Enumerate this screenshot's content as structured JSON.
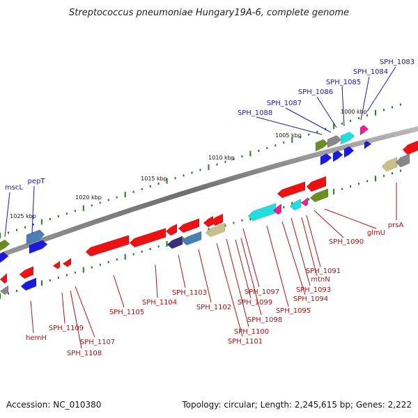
{
  "title": "Streptococcus pneumoniae Hungary19A-6, complete genome",
  "scale_labels": [
    "1000 kbp",
    "1005 kbp",
    "1010 kbp",
    "1015 kbp",
    "1020 kbp",
    "1025 kbp"
  ],
  "top_labels": [
    "SPH_1083",
    "SPH_1084",
    "SPH_1085",
    "SPH_1086",
    "SPH_1087",
    "SPH_1088",
    "pepT",
    "mscL"
  ],
  "bottom_labels": [
    "prsA",
    "glmU",
    "SPH_1090",
    "SPH_1091",
    "mtnN",
    "SPH_1093",
    "SPH_1094",
    "SPH_1095",
    "SPH_1097",
    "SPH_1098",
    "SPH_1099",
    "SPH_1100",
    "SPH_1101",
    "SPH_1102",
    "SPH_1103",
    "SPH_1104",
    "SPH_1105",
    "SPH_1107",
    "SPH_1108",
    "SPH_1109",
    "hemH"
  ],
  "footer": {
    "accession": "Accession: NC_010380",
    "topology": "Topology: circular; Length: 2,245,615 bp; Genes: 2,222"
  },
  "colors": {
    "backbone": "#7a7a7a",
    "tick": "#1e7d1e",
    "top_label": "#1a1aa8",
    "bottom_label": "#b01010",
    "gene_red": "#ee1111",
    "gene_blue": "#1a1ae0",
    "gene_steel": "#4a7fb5",
    "gene_olive": "#6b8e23",
    "gene_cyan": "#22dddd",
    "gene_pink": "#e8238f",
    "gene_khaki": "#c8c088",
    "gene_grey": "#888888",
    "gene_indigo": "#3a2f7a"
  }
}
